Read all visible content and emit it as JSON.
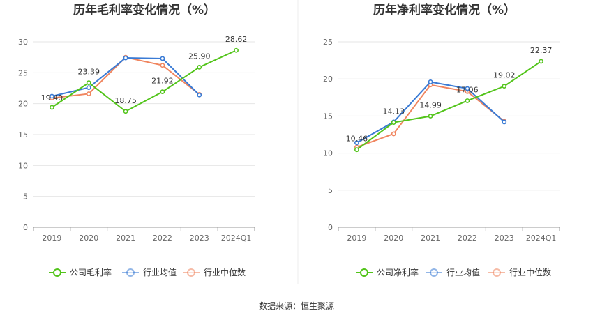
{
  "source": "数据来源：恒生聚源",
  "chart_data": [
    {
      "type": "line",
      "title": "历年毛利率变化情况（%）",
      "categories": [
        "2019",
        "2020",
        "2021",
        "2022",
        "2023",
        "2024Q1"
      ],
      "ylim": [
        0,
        30
      ],
      "yticks": [
        0,
        5,
        10,
        15,
        20,
        25,
        30
      ],
      "grid": true,
      "legend_position": "bottom",
      "series": [
        {
          "name": "公司毛利率",
          "color": "#52c41a",
          "values": [
            19.4,
            23.39,
            18.75,
            21.92,
            25.9,
            28.62
          ],
          "labels": [
            "19.40",
            "23.39",
            "18.75",
            "21.92",
            "25.90",
            "28.62"
          ]
        },
        {
          "name": "行业均值",
          "color": "#3a7bd5",
          "values": [
            21.2,
            22.6,
            27.4,
            27.3,
            21.4,
            null
          ]
        },
        {
          "name": "行业中位数",
          "color": "#f0855f",
          "values": [
            20.9,
            21.6,
            27.5,
            26.2,
            21.5,
            null
          ]
        }
      ]
    },
    {
      "type": "line",
      "title": "历年净利率变化情况（%）",
      "categories": [
        "2019",
        "2020",
        "2021",
        "2022",
        "2023",
        "2024Q1"
      ],
      "ylim": [
        0,
        25
      ],
      "yticks": [
        0,
        5,
        10,
        15,
        20,
        25
      ],
      "grid": true,
      "legend_position": "bottom",
      "series": [
        {
          "name": "公司净利率",
          "color": "#52c41a",
          "values": [
            10.46,
            14.13,
            14.99,
            17.06,
            19.02,
            22.37
          ],
          "labels": [
            "10.46",
            "14.13",
            "14.99",
            "17.06",
            "19.02",
            "22.37"
          ]
        },
        {
          "name": "行业均值",
          "color": "#3a7bd5",
          "values": [
            11.4,
            14.2,
            19.6,
            18.7,
            14.2,
            null
          ]
        },
        {
          "name": "行业中位数",
          "color": "#f0855f",
          "values": [
            10.8,
            12.6,
            19.2,
            18.3,
            14.3,
            null
          ]
        }
      ]
    }
  ]
}
